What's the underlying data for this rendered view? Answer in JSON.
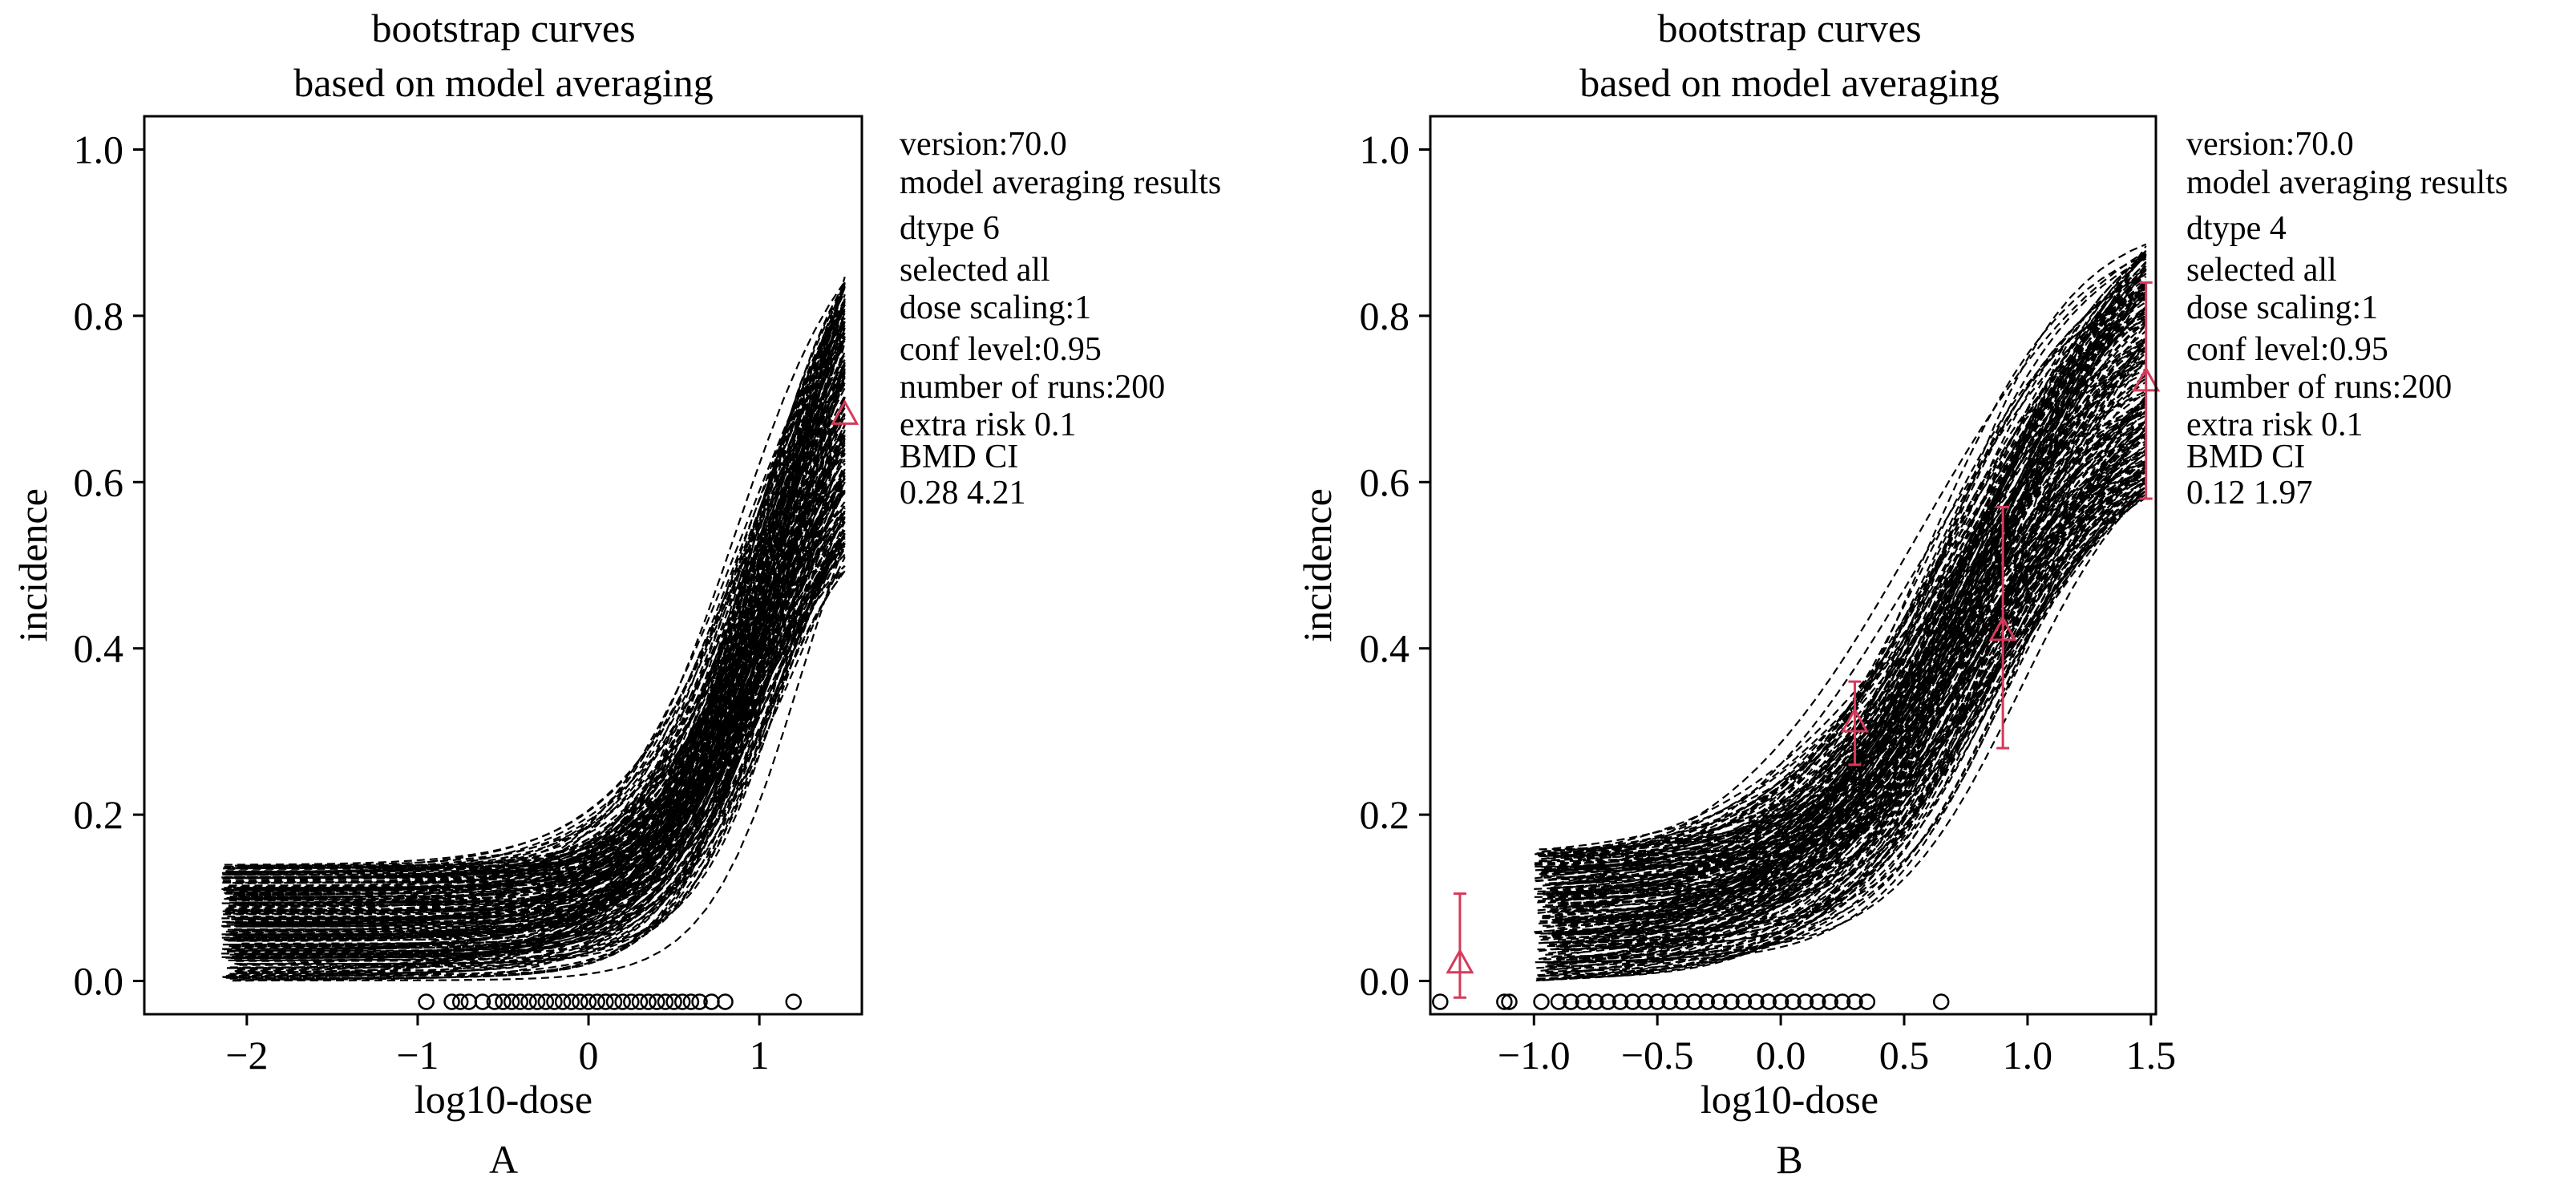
{
  "chart_data": [
    {
      "type": "line",
      "panel_label": "A",
      "title": "bootstrap curves",
      "subtitle": "based on model averaging",
      "xlabel": "log10-dose",
      "ylabel": "incidence",
      "xlim": [
        -2.6,
        1.6
      ],
      "ylim": [
        -0.04,
        1.04
      ],
      "xticks": [
        -2,
        -1,
        0,
        1
      ],
      "xtick_labels": [
        "−2",
        "−1",
        "0",
        "1"
      ],
      "yticks": [
        0.0,
        0.2,
        0.4,
        0.6,
        0.8,
        1.0
      ],
      "ytick_labels": [
        "0.0",
        "0.2",
        "0.4",
        "0.6",
        "0.8",
        "1.0"
      ],
      "annotation": [
        "version:70.0",
        "model averaging results",
        "dtype 6",
        "selected all",
        "dose scaling:1",
        "conf level:0.95",
        "number of runs:200",
        "extra risk 0.1",
        "BMD CI",
        "0.28 4.21"
      ],
      "curve_x_range": [
        -2.15,
        1.5
      ],
      "curve_count": 200,
      "curve_start_range": [
        0.0,
        0.14
      ],
      "curve_end_range": [
        0.49,
        0.85
      ],
      "curve_midpoint_range": [
        0.85,
        1.25
      ],
      "curve_style": "dashed",
      "observed": [
        {
          "x": 1.5,
          "y": 0.68
        }
      ],
      "bmd_points_x": [
        -0.95,
        -0.8,
        -0.75,
        -0.7,
        -0.62,
        -0.55,
        -0.5,
        -0.45,
        -0.4,
        -0.35,
        -0.3,
        -0.25,
        -0.2,
        -0.15,
        -0.1,
        -0.05,
        0.0,
        0.05,
        0.1,
        0.15,
        0.2,
        0.25,
        0.3,
        0.35,
        0.4,
        0.45,
        0.5,
        0.55,
        0.6,
        0.65,
        0.72,
        0.8,
        1.2
      ],
      "bmd_points_y": -0.025,
      "colors": {
        "curves": "#000000",
        "observed": "#d63a5a"
      }
    },
    {
      "type": "line",
      "panel_label": "B",
      "title": "bootstrap curves",
      "subtitle": "based on model averaging",
      "xlabel": "log10-dose",
      "ylabel": "incidence",
      "xlim": [
        -1.42,
        1.52
      ],
      "ylim": [
        -0.04,
        1.04
      ],
      "xticks": [
        -1.0,
        -0.5,
        0.0,
        0.5,
        1.0,
        1.5
      ],
      "xtick_labels": [
        "−1.0",
        "−0.5",
        "0.0",
        "0.5",
        "1.0",
        "1.5"
      ],
      "yticks": [
        0.0,
        0.2,
        0.4,
        0.6,
        0.8,
        1.0
      ],
      "ytick_labels": [
        "0.0",
        "0.2",
        "0.4",
        "0.6",
        "0.8",
        "1.0"
      ],
      "annotation": [
        "version:70.0",
        "model averaging results",
        "dtype 4",
        "selected all",
        "dose scaling:1",
        "conf level:0.95",
        "number of runs:200",
        "extra risk 0.1",
        "BMD CI",
        "0.12 1.97"
      ],
      "curve_x_range": [
        -1.0,
        1.48
      ],
      "curve_count": 200,
      "curve_start_range": [
        0.0,
        0.16
      ],
      "curve_end_range": [
        0.58,
        0.89
      ],
      "curve_midpoint_range": [
        0.55,
        1.0
      ],
      "curve_style": "dashed",
      "observed": [
        {
          "x": -1.3,
          "y": 0.02,
          "low": -0.02,
          "high": 0.105
        },
        {
          "x": 0.3,
          "y": 0.31,
          "low": 0.26,
          "high": 0.36
        },
        {
          "x": 0.9,
          "y": 0.42,
          "low": 0.28,
          "high": 0.57
        },
        {
          "x": 1.48,
          "y": 0.72,
          "low": 0.58,
          "high": 0.84
        }
      ],
      "bmd_points_x": [
        -1.38,
        -1.12,
        -1.1,
        -0.97,
        -0.9,
        -0.85,
        -0.8,
        -0.75,
        -0.7,
        -0.65,
        -0.6,
        -0.55,
        -0.5,
        -0.45,
        -0.4,
        -0.35,
        -0.3,
        -0.25,
        -0.2,
        -0.15,
        -0.1,
        -0.05,
        0.0,
        0.05,
        0.1,
        0.15,
        0.2,
        0.25,
        0.3,
        0.35,
        0.65
      ],
      "bmd_points_y": -0.025,
      "colors": {
        "curves": "#000000",
        "observed": "#d63a5a"
      }
    }
  ]
}
